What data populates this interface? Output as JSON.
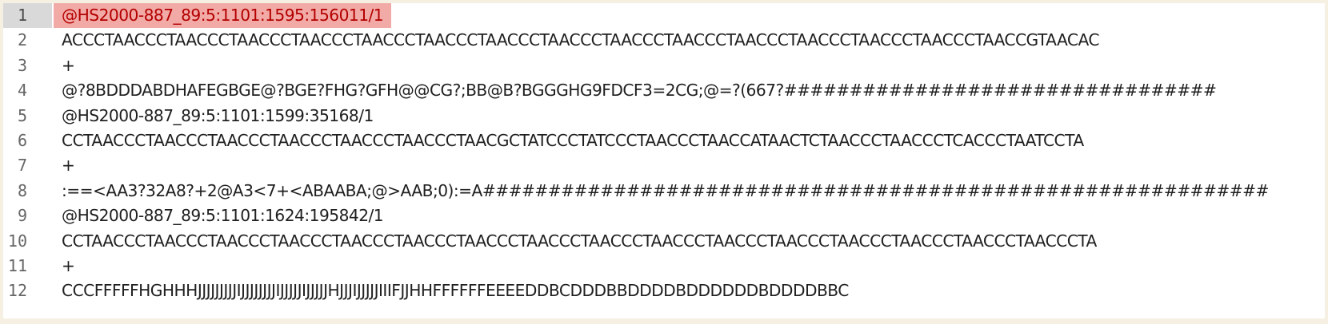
{
  "editor": {
    "current_line": 1,
    "lines": [
      {
        "number": "1",
        "text": "@HS2000-887_89:5:1101:1595:156011/1"
      },
      {
        "number": "2",
        "text": "ACCCTAACCCTAACCCTAACCCTAACCCTAACCCTAACCCTAACCCTAACCCTAACCCTAACCCTAACCCTAACCCTAACCCTAACCCTAACCGTAACAC"
      },
      {
        "number": "3",
        "text": "+"
      },
      {
        "number": "4",
        "text": "@?8BDDDABDHAFEGBGE@?BGE?FHG?GFH@@CG?;BB@B?BGGGHG9FDCF3=2CG;@=?(667?#################################"
      },
      {
        "number": "5",
        "text": "@HS2000-887_89:5:1101:1599:35168/1"
      },
      {
        "number": "6",
        "text": "CCTAACCCTAACCCTAACCCTAACCCTAACCCTAACCCTAACGCTATCCCTATCCCTAACCCTAACCATAACTCTAACCCTAACCCTCACCCTAATCCTA"
      },
      {
        "number": "7",
        "text": "+"
      },
      {
        "number": "8",
        "text": ":==<AA3?32A8?+2@A3<7+<ABAABA;@>AAB;0):=A############################################################"
      },
      {
        "number": "9",
        "text": "@HS2000-887_89:5:1101:1624:195842/1"
      },
      {
        "number": "10",
        "text": "CCTAACCCTAACCCTAACCCTAACCCTAACCCTAACCCTAACCCTAACCCTAACCCTAACCCTAACCCTAACCCTAACCCTAACCCTAACCCTAACCCTA"
      },
      {
        "number": "11",
        "text": "+"
      },
      {
        "number": "12",
        "text": "CCCFFFFFHGHHHJJJJJJJJJIJJJJJJJJIJJJJJIJJJJJHJJJIJJJJJIIIFJJHHFFFFFFEEEEDDBCDDDBBDDDDBDDDDDDBDDDDBBC"
      }
    ]
  }
}
